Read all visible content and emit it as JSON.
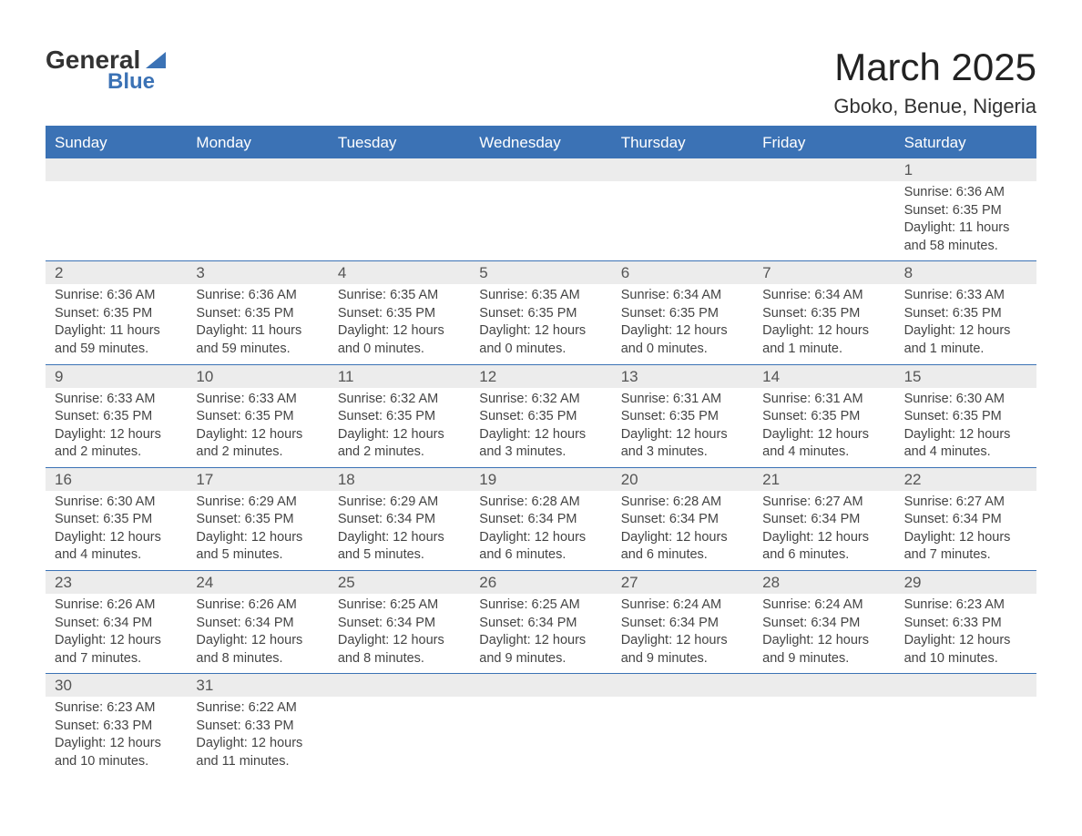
{
  "logo": {
    "text_top": "General",
    "text_bottom": "Blue"
  },
  "title": "March 2025",
  "location": "Gboko, Benue, Nigeria",
  "colors": {
    "header_bg": "#3b72b5",
    "header_text": "#ffffff",
    "stripe_bg": "#ececec",
    "body_text": "#444444",
    "page_bg": "#ffffff"
  },
  "days_of_week": [
    "Sunday",
    "Monday",
    "Tuesday",
    "Wednesday",
    "Thursday",
    "Friday",
    "Saturday"
  ],
  "weeks": [
    [
      null,
      null,
      null,
      null,
      null,
      null,
      {
        "n": "1",
        "sunrise": "6:36 AM",
        "sunset": "6:35 PM",
        "daylight": "11 hours and 58 minutes."
      }
    ],
    [
      {
        "n": "2",
        "sunrise": "6:36 AM",
        "sunset": "6:35 PM",
        "daylight": "11 hours and 59 minutes."
      },
      {
        "n": "3",
        "sunrise": "6:36 AM",
        "sunset": "6:35 PM",
        "daylight": "11 hours and 59 minutes."
      },
      {
        "n": "4",
        "sunrise": "6:35 AM",
        "sunset": "6:35 PM",
        "daylight": "12 hours and 0 minutes."
      },
      {
        "n": "5",
        "sunrise": "6:35 AM",
        "sunset": "6:35 PM",
        "daylight": "12 hours and 0 minutes."
      },
      {
        "n": "6",
        "sunrise": "6:34 AM",
        "sunset": "6:35 PM",
        "daylight": "12 hours and 0 minutes."
      },
      {
        "n": "7",
        "sunrise": "6:34 AM",
        "sunset": "6:35 PM",
        "daylight": "12 hours and 1 minute."
      },
      {
        "n": "8",
        "sunrise": "6:33 AM",
        "sunset": "6:35 PM",
        "daylight": "12 hours and 1 minute."
      }
    ],
    [
      {
        "n": "9",
        "sunrise": "6:33 AM",
        "sunset": "6:35 PM",
        "daylight": "12 hours and 2 minutes."
      },
      {
        "n": "10",
        "sunrise": "6:33 AM",
        "sunset": "6:35 PM",
        "daylight": "12 hours and 2 minutes."
      },
      {
        "n": "11",
        "sunrise": "6:32 AM",
        "sunset": "6:35 PM",
        "daylight": "12 hours and 2 minutes."
      },
      {
        "n": "12",
        "sunrise": "6:32 AM",
        "sunset": "6:35 PM",
        "daylight": "12 hours and 3 minutes."
      },
      {
        "n": "13",
        "sunrise": "6:31 AM",
        "sunset": "6:35 PM",
        "daylight": "12 hours and 3 minutes."
      },
      {
        "n": "14",
        "sunrise": "6:31 AM",
        "sunset": "6:35 PM",
        "daylight": "12 hours and 4 minutes."
      },
      {
        "n": "15",
        "sunrise": "6:30 AM",
        "sunset": "6:35 PM",
        "daylight": "12 hours and 4 minutes."
      }
    ],
    [
      {
        "n": "16",
        "sunrise": "6:30 AM",
        "sunset": "6:35 PM",
        "daylight": "12 hours and 4 minutes."
      },
      {
        "n": "17",
        "sunrise": "6:29 AM",
        "sunset": "6:35 PM",
        "daylight": "12 hours and 5 minutes."
      },
      {
        "n": "18",
        "sunrise": "6:29 AM",
        "sunset": "6:34 PM",
        "daylight": "12 hours and 5 minutes."
      },
      {
        "n": "19",
        "sunrise": "6:28 AM",
        "sunset": "6:34 PM",
        "daylight": "12 hours and 6 minutes."
      },
      {
        "n": "20",
        "sunrise": "6:28 AM",
        "sunset": "6:34 PM",
        "daylight": "12 hours and 6 minutes."
      },
      {
        "n": "21",
        "sunrise": "6:27 AM",
        "sunset": "6:34 PM",
        "daylight": "12 hours and 6 minutes."
      },
      {
        "n": "22",
        "sunrise": "6:27 AM",
        "sunset": "6:34 PM",
        "daylight": "12 hours and 7 minutes."
      }
    ],
    [
      {
        "n": "23",
        "sunrise": "6:26 AM",
        "sunset": "6:34 PM",
        "daylight": "12 hours and 7 minutes."
      },
      {
        "n": "24",
        "sunrise": "6:26 AM",
        "sunset": "6:34 PM",
        "daylight": "12 hours and 8 minutes."
      },
      {
        "n": "25",
        "sunrise": "6:25 AM",
        "sunset": "6:34 PM",
        "daylight": "12 hours and 8 minutes."
      },
      {
        "n": "26",
        "sunrise": "6:25 AM",
        "sunset": "6:34 PM",
        "daylight": "12 hours and 9 minutes."
      },
      {
        "n": "27",
        "sunrise": "6:24 AM",
        "sunset": "6:34 PM",
        "daylight": "12 hours and 9 minutes."
      },
      {
        "n": "28",
        "sunrise": "6:24 AM",
        "sunset": "6:34 PM",
        "daylight": "12 hours and 9 minutes."
      },
      {
        "n": "29",
        "sunrise": "6:23 AM",
        "sunset": "6:33 PM",
        "daylight": "12 hours and 10 minutes."
      }
    ],
    [
      {
        "n": "30",
        "sunrise": "6:23 AM",
        "sunset": "6:33 PM",
        "daylight": "12 hours and 10 minutes."
      },
      {
        "n": "31",
        "sunrise": "6:22 AM",
        "sunset": "6:33 PM",
        "daylight": "12 hours and 11 minutes."
      },
      null,
      null,
      null,
      null,
      null
    ]
  ],
  "labels": {
    "sunrise_prefix": "Sunrise: ",
    "sunset_prefix": "Sunset: ",
    "daylight_prefix": "Daylight: "
  }
}
